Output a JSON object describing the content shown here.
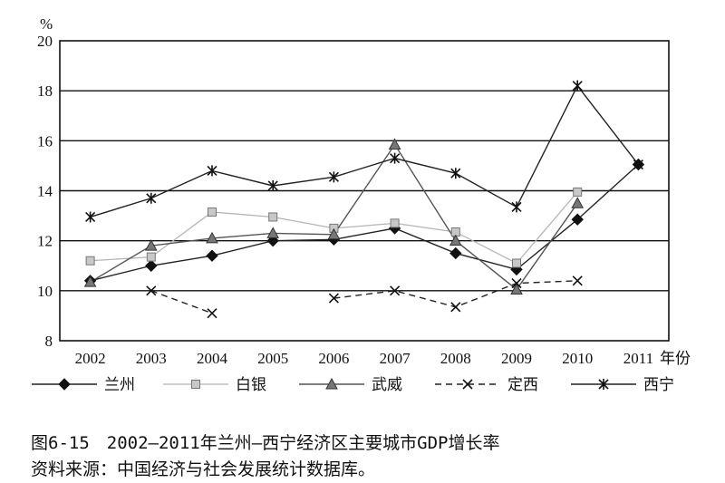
{
  "chart_data": {
    "type": "line",
    "ylabel": "%",
    "xlabel": "年份",
    "ylim": [
      8,
      20
    ],
    "yticks": [
      8,
      10,
      12,
      14,
      16,
      18,
      20
    ],
    "categories": [
      "2002",
      "2003",
      "2004",
      "2005",
      "2006",
      "2007",
      "2008",
      "2009",
      "2010",
      "2011"
    ],
    "grid": "horizontal",
    "legend": "bottom",
    "series": [
      {
        "name": "兰州",
        "marker": "diamond",
        "line": "solid",
        "color": "#222222",
        "values": [
          10.4,
          11.0,
          11.4,
          12.0,
          12.05,
          12.5,
          11.5,
          10.85,
          12.85,
          15.05
        ]
      },
      {
        "name": "白银",
        "marker": "square",
        "line": "solid-light",
        "color": "#b5b5b5",
        "values": [
          11.2,
          11.35,
          13.15,
          12.95,
          12.5,
          12.7,
          12.35,
          11.1,
          13.95,
          null
        ]
      },
      {
        "name": "武威",
        "marker": "triangle",
        "line": "solid-medium",
        "color": "#555555",
        "values": [
          10.35,
          11.8,
          12.1,
          12.3,
          12.25,
          15.85,
          12.0,
          10.05,
          13.5,
          null
        ]
      },
      {
        "name": "定西",
        "marker": "x",
        "line": "dashed",
        "color": "#222222",
        "values": [
          null,
          10.0,
          9.1,
          null,
          9.7,
          10.0,
          9.35,
          10.3,
          10.4,
          null
        ]
      },
      {
        "name": "西宁",
        "marker": "asterisk",
        "line": "solid",
        "color": "#222222",
        "values": [
          12.95,
          13.7,
          14.8,
          14.2,
          14.55,
          15.3,
          14.7,
          13.35,
          18.2,
          15.05
        ]
      }
    ]
  },
  "caption": {
    "title": "图6-15　2002—2011年兰州—西宁经济区主要城市GDP增长率",
    "source": "资料来源：中国经济与社会发展统计数据库。"
  }
}
